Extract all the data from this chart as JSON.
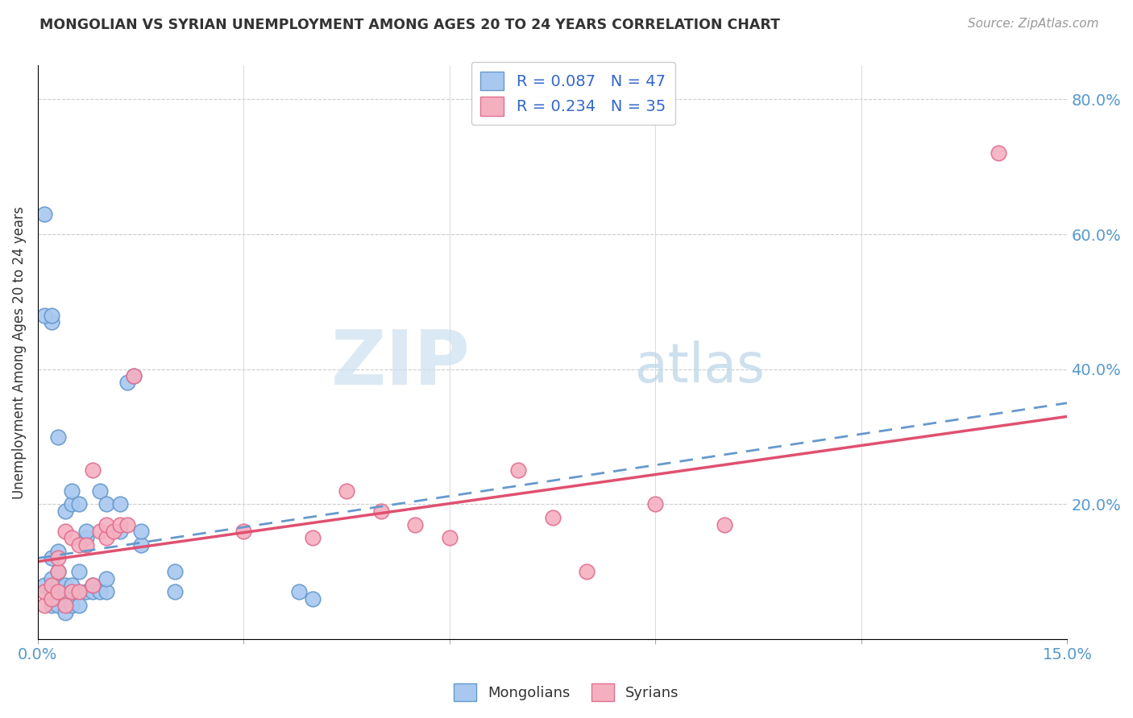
{
  "title": "MONGOLIAN VS SYRIAN UNEMPLOYMENT AMONG AGES 20 TO 24 YEARS CORRELATION CHART",
  "source": "Source: ZipAtlas.com",
  "ylabel": "Unemployment Among Ages 20 to 24 years",
  "xlim": [
    0.0,
    0.15
  ],
  "ylim": [
    0.0,
    0.85
  ],
  "x_ticks": [
    0.0,
    0.03,
    0.06,
    0.09,
    0.12,
    0.15
  ],
  "y_ticks_right": [
    0.0,
    0.2,
    0.4,
    0.6,
    0.8
  ],
  "mongolian_color": "#a8c8f0",
  "mongolian_edge": "#6699cc",
  "syrian_color": "#f5b0c0",
  "syrian_edge": "#e07090",
  "trendline_mongolian_color": "#6699cc",
  "trendline_syrian_color": "#e05070",
  "R_mongolian": 0.087,
  "N_mongolian": 47,
  "R_syrian": 0.234,
  "N_syrian": 35,
  "mongolian_x": [
    0.001,
    0.001,
    0.002,
    0.002,
    0.002,
    0.002,
    0.002,
    0.003,
    0.003,
    0.003,
    0.003,
    0.003,
    0.003,
    0.004,
    0.004,
    0.004,
    0.004,
    0.004,
    0.005,
    0.005,
    0.005,
    0.005,
    0.006,
    0.006,
    0.006,
    0.007,
    0.007,
    0.007,
    0.008,
    0.008,
    0.009,
    0.009,
    0.01,
    0.01,
    0.01,
    0.012,
    0.012,
    0.013,
    0.014,
    0.015,
    0.015,
    0.02,
    0.02,
    0.038,
    0.04,
    0.001,
    0.002
  ],
  "mongolian_y": [
    0.63,
    0.08,
    0.05,
    0.07,
    0.09,
    0.12,
    0.47,
    0.05,
    0.07,
    0.08,
    0.1,
    0.13,
    0.3,
    0.04,
    0.06,
    0.07,
    0.08,
    0.19,
    0.05,
    0.08,
    0.2,
    0.22,
    0.05,
    0.1,
    0.2,
    0.07,
    0.15,
    0.16,
    0.07,
    0.08,
    0.07,
    0.22,
    0.07,
    0.09,
    0.2,
    0.16,
    0.2,
    0.38,
    0.39,
    0.14,
    0.16,
    0.07,
    0.1,
    0.07,
    0.06,
    0.48,
    0.48
  ],
  "syrian_x": [
    0.001,
    0.001,
    0.002,
    0.002,
    0.003,
    0.003,
    0.003,
    0.004,
    0.004,
    0.005,
    0.005,
    0.006,
    0.006,
    0.007,
    0.008,
    0.008,
    0.009,
    0.01,
    0.01,
    0.011,
    0.012,
    0.013,
    0.014,
    0.03,
    0.04,
    0.045,
    0.05,
    0.055,
    0.06,
    0.07,
    0.075,
    0.08,
    0.09,
    0.1,
    0.14
  ],
  "syrian_y": [
    0.05,
    0.07,
    0.06,
    0.08,
    0.07,
    0.1,
    0.12,
    0.05,
    0.16,
    0.07,
    0.15,
    0.07,
    0.14,
    0.14,
    0.08,
    0.25,
    0.16,
    0.15,
    0.17,
    0.16,
    0.17,
    0.17,
    0.39,
    0.16,
    0.15,
    0.22,
    0.19,
    0.17,
    0.15,
    0.25,
    0.18,
    0.1,
    0.2,
    0.17,
    0.72
  ],
  "background_color": "#ffffff",
  "grid_color": "#cccccc",
  "watermark_zip": "ZIP",
  "watermark_atlas": "atlas",
  "watermark_color_zip": "#d0e4f5",
  "watermark_color_atlas": "#b8d4e8",
  "legend_mongolian_label": "Mongolians",
  "legend_syrian_label": "Syrians"
}
